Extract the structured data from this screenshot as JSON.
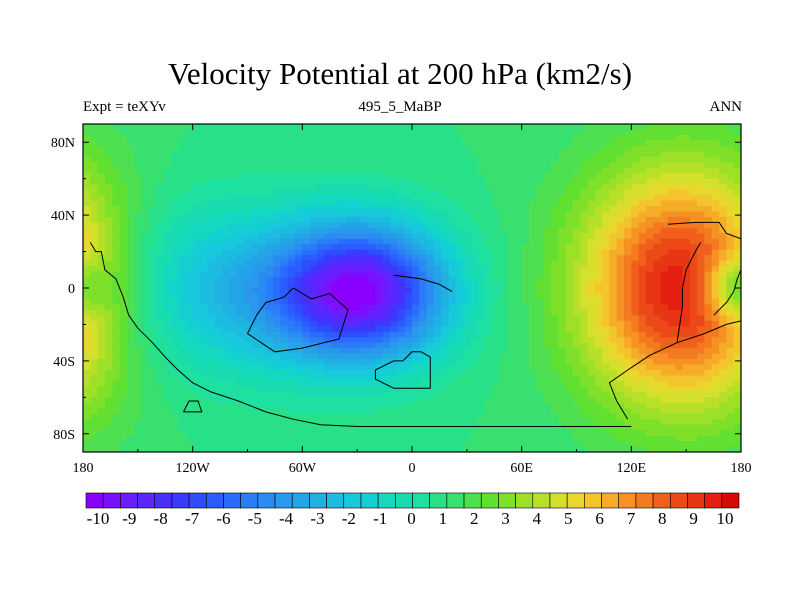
{
  "header": {
    "title": "Velocity Potential at 200 hPa (km2/s)",
    "left": "Expt = teXYv",
    "center": "495_5_MaBP",
    "right": "ANN"
  },
  "chart_data": {
    "type": "heatmap",
    "title": "Velocity Potential at 200 hPa (km2/s)",
    "units": "km2/s",
    "x_axis": {
      "range": [
        -180,
        180
      ],
      "ticks": [
        -180,
        -120,
        -60,
        0,
        60,
        120,
        180
      ],
      "tick_labels": [
        "180",
        "120W",
        "60W",
        "0",
        "60E",
        "120E",
        "180"
      ]
    },
    "y_axis": {
      "range": [
        -90,
        90
      ],
      "ticks": [
        80,
        40,
        0,
        -40,
        -80
      ],
      "tick_labels": [
        "80N",
        "40N",
        "0",
        "40S",
        "80S"
      ]
    },
    "colorbar": {
      "labels": [
        "-10",
        "-9",
        "-8",
        "-7",
        "-6",
        "-5",
        "-4",
        "-3",
        "-2",
        "-1",
        "0",
        "1",
        "2",
        "3",
        "4",
        "5",
        "6",
        "7",
        "8",
        "9",
        "10"
      ],
      "levels_min": -10.5,
      "levels_max": 10.5,
      "levels_step": 0.5,
      "colors": [
        "#8a00ff",
        "#7a10ff",
        "#6a1eff",
        "#5a28ff",
        "#4a30ff",
        "#3a3aff",
        "#2f4cff",
        "#2a5cff",
        "#2a6cff",
        "#2a7cf8",
        "#2a8cf0",
        "#2a98ec",
        "#24a4e8",
        "#20b0e4",
        "#1cbce0",
        "#18c8dc",
        "#14d0d0",
        "#14d8c0",
        "#18dcb0",
        "#1ee0a0",
        "#28e088",
        "#38e070",
        "#4ee050",
        "#62e032",
        "#7ee028",
        "#9ce028",
        "#b8e028",
        "#d4e02c",
        "#e8d82c",
        "#f4c42c",
        "#f6ac28",
        "#f69224",
        "#f47a20",
        "#f0601c",
        "#ec4818",
        "#e83614",
        "#e41e10",
        "#d80a08"
      ]
    },
    "field_centers": [
      {
        "lon": -25,
        "lat": -2,
        "amplitude": -8.8,
        "sigma_lon": 32,
        "sigma_lat": 26
      },
      {
        "lon": -70,
        "lat": -3,
        "amplitude": -3.0,
        "sigma_lon": 40,
        "sigma_lat": 30
      },
      {
        "lon": -140,
        "lat": 2,
        "amplitude": -2.2,
        "sigma_lon": 40,
        "sigma_lat": 35
      },
      {
        "lon": 150,
        "lat": 0,
        "amplitude": 8.3,
        "sigma_lon": 40,
        "sigma_lat": 45
      },
      {
        "lon": 175,
        "lat": 0,
        "amplitude": -3.5,
        "sigma_lon": 12,
        "sigma_lat": 12
      }
    ]
  }
}
